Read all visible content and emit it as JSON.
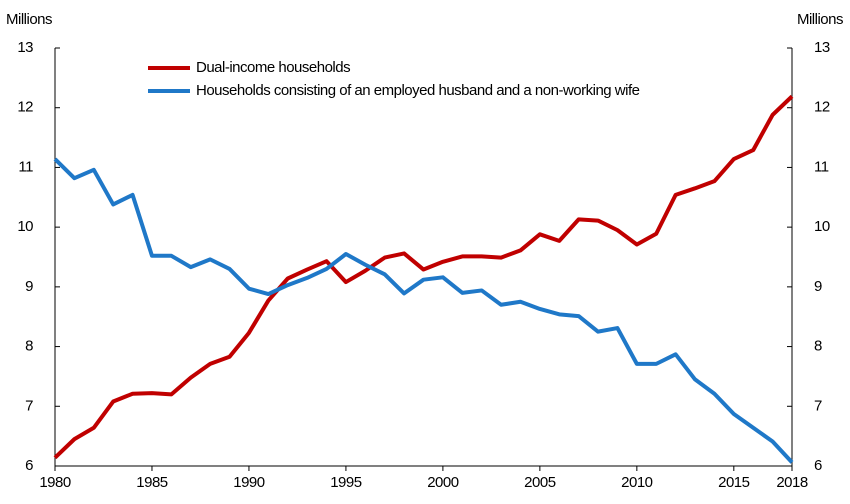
{
  "chart_data": {
    "type": "line",
    "y_label": "Millions",
    "y2_label": "Millions",
    "x": [
      1980,
      1981,
      1982,
      1983,
      1984,
      1985,
      1986,
      1987,
      1988,
      1989,
      1990,
      1991,
      1992,
      1993,
      1994,
      1995,
      1996,
      1997,
      1998,
      1999,
      2000,
      2001,
      2002,
      2003,
      2004,
      2005,
      2006,
      2007,
      2008,
      2009,
      2010,
      2011,
      2012,
      2013,
      2014,
      2015,
      2016,
      2017,
      2018
    ],
    "series": [
      {
        "name": "Dual-income households",
        "color": "#c00000",
        "values": [
          6.14,
          6.45,
          6.64,
          7.08,
          7.21,
          7.22,
          7.2,
          7.48,
          7.71,
          7.83,
          8.23,
          8.77,
          9.14,
          9.29,
          9.43,
          9.08,
          9.27,
          9.49,
          9.56,
          9.29,
          9.42,
          9.51,
          9.51,
          9.49,
          9.61,
          9.88,
          9.77,
          10.13,
          10.11,
          9.95,
          9.71,
          9.89,
          10.54,
          10.65,
          10.77,
          11.14,
          11.29,
          11.88,
          12.19
        ]
      },
      {
        "name": "Households consisting of an employed husband and a non-working wife",
        "color": "#1f78c8",
        "values": [
          11.14,
          10.82,
          10.96,
          10.38,
          10.54,
          9.52,
          9.52,
          9.33,
          9.46,
          9.3,
          8.97,
          8.88,
          9.03,
          9.15,
          9.3,
          9.55,
          9.37,
          9.21,
          8.89,
          9.12,
          9.16,
          8.9,
          8.94,
          8.7,
          8.75,
          8.63,
          8.54,
          8.51,
          8.25,
          8.31,
          7.71,
          7.71,
          7.87,
          7.45,
          7.21,
          6.87,
          6.64,
          6.41,
          6.06
        ]
      }
    ],
    "xlim": [
      1980,
      2018
    ],
    "xticks": [
      1980,
      1985,
      1990,
      1995,
      2000,
      2005,
      2010,
      2015,
      2018
    ],
    "ylim": [
      6,
      13
    ],
    "yticks": [
      6,
      7,
      8,
      9,
      10,
      11,
      12,
      13
    ],
    "y2lim": [
      6,
      13
    ],
    "y2ticks": [
      6,
      7,
      8,
      9,
      10,
      11,
      12,
      13
    ],
    "grid": false
  }
}
